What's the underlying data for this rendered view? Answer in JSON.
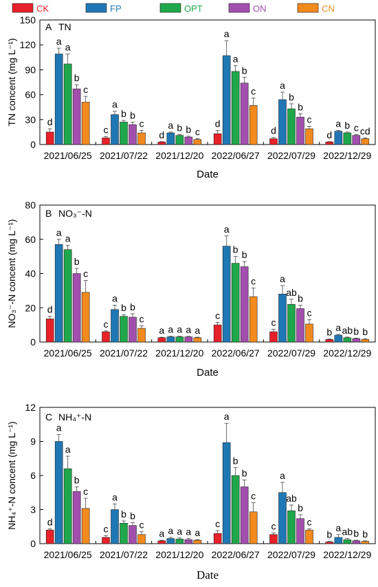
{
  "legend": [
    {
      "name": "CK",
      "color": "#e8202a",
      "text_color": "#e8202a"
    },
    {
      "name": "FP",
      "color": "#1f78b4",
      "text_color": "#1f78b4"
    },
    {
      "name": "OPT",
      "color": "#1fa84a",
      "text_color": "#1fa84a"
    },
    {
      "name": "ON",
      "color": "#a24fae",
      "text_color": "#a24fae"
    },
    {
      "name": "CN",
      "color": "#f28a1e",
      "text_color": "#f28a1e"
    }
  ],
  "chart_data": [
    {
      "type": "bar",
      "panel": "A",
      "title": "TN",
      "ylabel": "TN concent (mg L⁻¹)",
      "xlabel": "Date",
      "ylim": [
        0,
        150
      ],
      "yticks": [
        0,
        30,
        60,
        90,
        120,
        150
      ],
      "categories": [
        "2021/06/25",
        "2021/07/22",
        "2021/12/20",
        "2022/06/27",
        "2022/07/29",
        "2022/12/29"
      ],
      "series": [
        {
          "name": "CK",
          "values": [
            15,
            8,
            3,
            13,
            7,
            3
          ],
          "errors": [
            4,
            1.5,
            0.5,
            4,
            1.5,
            0.5
          ],
          "letters": [
            "d",
            "c",
            "d",
            "d",
            "d",
            "d"
          ]
        },
        {
          "name": "FP",
          "values": [
            109,
            36,
            14,
            107,
            54,
            16
          ],
          "errors": [
            7,
            4,
            1,
            18,
            9,
            1
          ],
          "letters": [
            "a",
            "a",
            "a",
            "a",
            "a",
            "a"
          ]
        },
        {
          "name": "OPT",
          "values": [
            97,
            27,
            11,
            88,
            43,
            14
          ],
          "errors": [
            12,
            2,
            1,
            7,
            6,
            1
          ],
          "letters": [
            "a",
            "b",
            "b",
            "a",
            "b",
            "b"
          ]
        },
        {
          "name": "ON",
          "values": [
            67,
            24,
            9,
            74,
            33,
            11
          ],
          "errors": [
            5,
            3,
            1,
            7,
            4,
            1
          ],
          "letters": [
            "b",
            "b",
            "b",
            "b",
            "b",
            "c"
          ]
        },
        {
          "name": "CN",
          "values": [
            51,
            14,
            6,
            47,
            19,
            7
          ],
          "errors": [
            7,
            3,
            1,
            9,
            3,
            1
          ],
          "letters": [
            "c",
            "c",
            "c",
            "c",
            "c",
            "cd"
          ]
        }
      ]
    },
    {
      "type": "bar",
      "panel": "B",
      "title": "NO₃⁻-N",
      "ylabel": "NO₃⁻-N concent (mg L⁻¹)",
      "xlabel": "Date",
      "ylim": [
        0,
        80
      ],
      "yticks": [
        0,
        20,
        40,
        60,
        80
      ],
      "categories": [
        "2021/06/25",
        "2021/07/22",
        "2021/12/20",
        "2022/06/27",
        "2022/07/29",
        "2022/12/29"
      ],
      "series": [
        {
          "name": "CK",
          "values": [
            13.5,
            6,
            2.5,
            10,
            6,
            1.5
          ],
          "errors": [
            1.5,
            0.5,
            0.3,
            1.5,
            1.5,
            0.3
          ],
          "letters": [
            "d",
            "c",
            "a",
            "c",
            "c",
            "b"
          ]
        },
        {
          "name": "FP",
          "values": [
            57,
            19,
            3,
            56,
            28,
            4
          ],
          "errors": [
            3,
            2.5,
            0.4,
            6,
            5,
            0.5
          ],
          "letters": [
            "a",
            "a",
            "a",
            "a",
            "a",
            "a"
          ]
        },
        {
          "name": "OPT",
          "values": [
            54,
            15,
            3,
            46,
            22,
            2.5
          ],
          "errors": [
            2.5,
            1,
            0.4,
            4,
            3,
            0.4
          ],
          "letters": [
            "a",
            "b",
            "a",
            "b",
            "ab",
            "ab"
          ]
        },
        {
          "name": "ON",
          "values": [
            40,
            14.5,
            3,
            44,
            19.5,
            2
          ],
          "errors": [
            3,
            2,
            0.3,
            3,
            2,
            0.3
          ],
          "letters": [
            "b",
            "b",
            "a",
            "b",
            "b",
            "b"
          ]
        },
        {
          "name": "CN",
          "values": [
            29,
            8,
            2.5,
            26.5,
            10.5,
            1.5
          ],
          "errors": [
            7,
            1.5,
            0.3,
            5,
            2.5,
            0.5
          ],
          "letters": [
            "c",
            "c",
            "a",
            "c",
            "c",
            "b"
          ]
        }
      ]
    },
    {
      "type": "bar",
      "panel": "C",
      "title": "NH₄⁺-N",
      "ylabel": "NH₄⁺-N concent (mg L⁻¹)",
      "xlabel": "Date",
      "ylim": [
        0,
        12
      ],
      "yticks": [
        0,
        3,
        6,
        9,
        12
      ],
      "categories": [
        "2021/06/25",
        "2021/07/22",
        "2021/12/20",
        "2022/06/27",
        "2022/07/29",
        "2022/12/29"
      ],
      "series": [
        {
          "name": "CK",
          "values": [
            1.2,
            0.55,
            0.25,
            0.9,
            0.8,
            0.15
          ],
          "errors": [
            0.1,
            0.15,
            0.05,
            0.25,
            0.15,
            0.05
          ],
          "letters": [
            "d",
            "c",
            "a",
            "c",
            "c",
            "b"
          ]
        },
        {
          "name": "FP",
          "values": [
            9.0,
            3.0,
            0.45,
            8.9,
            4.5,
            0.55
          ],
          "errors": [
            0.6,
            0.5,
            0.1,
            1.7,
            0.9,
            0.25
          ],
          "letters": [
            "a",
            "a",
            "a",
            "a",
            "a",
            "a"
          ]
        },
        {
          "name": "OPT",
          "values": [
            6.6,
            1.8,
            0.4,
            6.0,
            2.9,
            0.35
          ],
          "errors": [
            1.1,
            0.2,
            0.1,
            0.7,
            0.5,
            0.1
          ],
          "letters": [
            "a",
            "b",
            "a",
            "b",
            "ab",
            "ab"
          ]
        },
        {
          "name": "ON",
          "values": [
            4.6,
            1.6,
            0.35,
            5.0,
            2.2,
            0.25
          ],
          "errors": [
            0.4,
            0.25,
            0.1,
            0.6,
            0.35,
            0.05
          ],
          "letters": [
            "b",
            "b",
            "a",
            "b",
            "b",
            "b"
          ]
        },
        {
          "name": "CN",
          "values": [
            3.1,
            0.8,
            0.3,
            2.8,
            1.2,
            0.2
          ],
          "errors": [
            0.9,
            0.25,
            0.05,
            0.8,
            0.1,
            0.05
          ],
          "letters": [
            "c",
            "c",
            "a",
            "c",
            "c",
            "b"
          ]
        }
      ]
    }
  ]
}
